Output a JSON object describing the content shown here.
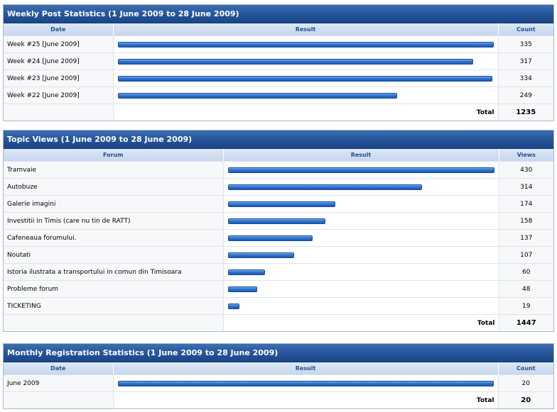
{
  "weekly": {
    "title": "Weekly Post Statistics (1 June 2009 to 28 June 2009)",
    "headers": {
      "col1": "Date",
      "col2": "Result",
      "col3": "Count"
    },
    "rows": [
      {
        "label": "Week #25 [June 2009]",
        "count": "335",
        "value": 335
      },
      {
        "label": "Week #24 [June 2009]",
        "count": "317",
        "value": 317
      },
      {
        "label": "Week #23 [June 2009]",
        "count": "334",
        "value": 334
      },
      {
        "label": "Week #22 [June 2009]",
        "count": "249",
        "value": 249
      }
    ],
    "max": 335,
    "total_label": "Total",
    "total_value": "1235"
  },
  "topics": {
    "title": "Topic Views (1 June 2009 to 28 June 2009)",
    "headers": {
      "col1": "Forum",
      "col2": "Result",
      "col3": "Views"
    },
    "rows": [
      {
        "label": "Tramvaie",
        "count": "430",
        "value": 430
      },
      {
        "label": "Autobuze",
        "count": "314",
        "value": 314
      },
      {
        "label": "Galerie imagini",
        "count": "174",
        "value": 174
      },
      {
        "label": "Investitii in Timis (care nu tin de RATT)",
        "count": "158",
        "value": 158
      },
      {
        "label": "Cafeneaua forumului.",
        "count": "137",
        "value": 137
      },
      {
        "label": "Noutati",
        "count": "107",
        "value": 107
      },
      {
        "label": "Istoria ilustrata a transportului in comun din Timisoara",
        "count": "60",
        "value": 60
      },
      {
        "label": "Probleme forum",
        "count": "48",
        "value": 48
      },
      {
        "label": "TICKETING",
        "count": "19",
        "value": 19
      }
    ],
    "max": 430,
    "total_label": "Total",
    "total_value": "1447"
  },
  "monthly": {
    "title": "Monthly Registration Statistics (1 June 2009 to 28 June 2009)",
    "headers": {
      "col1": "Date",
      "col2": "Result",
      "col3": "Count"
    },
    "rows": [
      {
        "label": "June 2009",
        "count": "20",
        "value": 20
      }
    ],
    "max": 20,
    "total_label": "Total",
    "total_value": "20"
  },
  "colors": {
    "header_blue": "#26559a",
    "bar_blue": "#2f74cf",
    "subheader_text": "#1f4f8f"
  }
}
